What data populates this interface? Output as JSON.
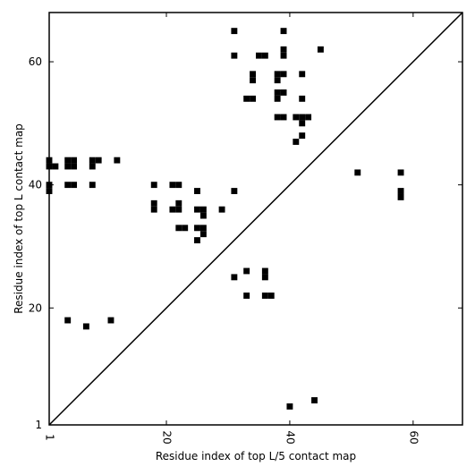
{
  "chart_data": {
    "type": "scatter",
    "title": "",
    "xlabel": "Residue index of top L/5 contact map",
    "ylabel": "Residue index of top L contact map",
    "xlim": [
      1,
      68
    ],
    "ylim": [
      1,
      68
    ],
    "x_ticks": [
      1,
      20,
      40,
      60
    ],
    "y_ticks": [
      1,
      20,
      40,
      60
    ],
    "x_tick_rotation": 270,
    "marker": "square",
    "marker_color": "#000000",
    "grid": false,
    "diagonal": {
      "from": [
        1,
        1
      ],
      "to": [
        68,
        68
      ],
      "color": "#000000"
    },
    "upper_triangle_points": [
      [
        31,
        65
      ],
      [
        39,
        65
      ],
      [
        31,
        61
      ],
      [
        35,
        61
      ],
      [
        36,
        61
      ],
      [
        39,
        61
      ],
      [
        39,
        62
      ],
      [
        45,
        62
      ],
      [
        34,
        58
      ],
      [
        34,
        57
      ],
      [
        38,
        58
      ],
      [
        39,
        58
      ],
      [
        42,
        58
      ],
      [
        38,
        57
      ],
      [
        38,
        55
      ],
      [
        39,
        55
      ],
      [
        38,
        54
      ],
      [
        33,
        54
      ],
      [
        34,
        54
      ],
      [
        42,
        54
      ],
      [
        38,
        51
      ],
      [
        39,
        51
      ],
      [
        41,
        51
      ],
      [
        42,
        51
      ],
      [
        43,
        51
      ],
      [
        42,
        50
      ],
      [
        42,
        48
      ],
      [
        41,
        47
      ],
      [
        1,
        44
      ],
      [
        1,
        43
      ],
      [
        2,
        43
      ],
      [
        4,
        44
      ],
      [
        5,
        44
      ],
      [
        4,
        43
      ],
      [
        5,
        43
      ],
      [
        8,
        44
      ],
      [
        8,
        43
      ],
      [
        9,
        44
      ],
      [
        12,
        44
      ],
      [
        1,
        40
      ],
      [
        1,
        39
      ],
      [
        4,
        40
      ],
      [
        5,
        40
      ],
      [
        8,
        40
      ],
      [
        18,
        40
      ],
      [
        21,
        40
      ],
      [
        22,
        40
      ],
      [
        25,
        39
      ],
      [
        31,
        39
      ],
      [
        18,
        37
      ],
      [
        18,
        36
      ],
      [
        21,
        36
      ],
      [
        22,
        36
      ],
      [
        22,
        37
      ],
      [
        25,
        36
      ],
      [
        26,
        36
      ],
      [
        26,
        35
      ],
      [
        29,
        36
      ],
      [
        22,
        33
      ],
      [
        23,
        33
      ],
      [
        25,
        33
      ],
      [
        26,
        33
      ],
      [
        26,
        32
      ],
      [
        25,
        31
      ],
      [
        31,
        25
      ],
      [
        33,
        26
      ],
      [
        36,
        26
      ],
      [
        36,
        25
      ],
      [
        33,
        22
      ],
      [
        36,
        22
      ],
      [
        37,
        22
      ],
      [
        4,
        18
      ],
      [
        7,
        17
      ],
      [
        11,
        18
      ],
      [
        51,
        42
      ],
      [
        58,
        42
      ],
      [
        58,
        39
      ],
      [
        58,
        38
      ]
    ],
    "lower_triangle_points": [
      [
        40,
        4
      ],
      [
        44,
        5
      ]
    ]
  }
}
